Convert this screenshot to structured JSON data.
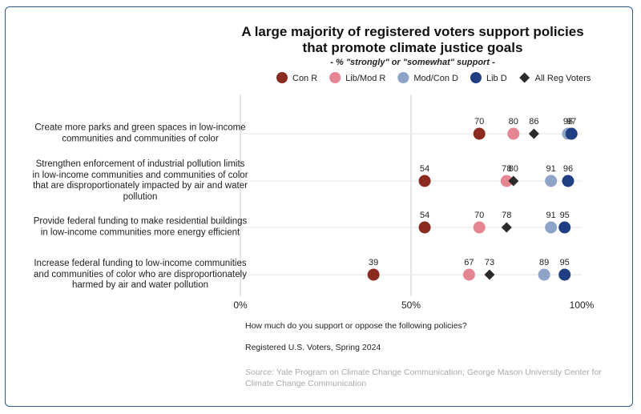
{
  "chart_data": {
    "type": "dot",
    "title": [
      "A large majority of registered voters support policies",
      "that promote climate justice goals"
    ],
    "subtitle": "- % \"strongly\" or \"somewhat\" support -",
    "categories": [
      "Create more parks and green spaces in low-income communities and communities of color",
      "Strengthen enforcement of industrial pollution limits in low-income communities and communities of color that are disproportionately impacted by air and water pollution",
      "Provide federal funding to make residential buildings in low-income communities more energy efficient",
      "Increase federal funding to low-income communities and communities of color who are disproportionately harmed by air and water pollution"
    ],
    "series": [
      {
        "name": "Con R",
        "color": "#8b2a1e",
        "marker": "circle",
        "values": [
          70,
          54,
          54,
          39
        ]
      },
      {
        "name": "Lib/Mod R",
        "color": "#e58592",
        "marker": "circle",
        "values": [
          80,
          78,
          70,
          67
        ]
      },
      {
        "name": "Mod/Con D",
        "color": "#8ea3c8",
        "marker": "circle",
        "values": [
          96,
          91,
          91,
          89
        ]
      },
      {
        "name": "Lib D",
        "color": "#1f3f82",
        "marker": "circle",
        "values": [
          97,
          96,
          95,
          95
        ]
      },
      {
        "name": "All Reg Voters",
        "color": "#2b2b2b",
        "marker": "diamond",
        "values": [
          86,
          80,
          78,
          73
        ]
      }
    ],
    "xlim": [
      0,
      100
    ],
    "xticks": [
      {
        "value": 0,
        "label": "0%"
      },
      {
        "value": 50,
        "label": "50%"
      },
      {
        "value": 100,
        "label": "100%"
      }
    ],
    "grid": true,
    "question": "How much do you support or oppose the following policies?",
    "population": "Registered U.S. Voters, Spring 2024",
    "source_label": "Source:",
    "source": "Yale Program on Climate Change Communication; George Mason University Center for Climate Change Communication"
  }
}
